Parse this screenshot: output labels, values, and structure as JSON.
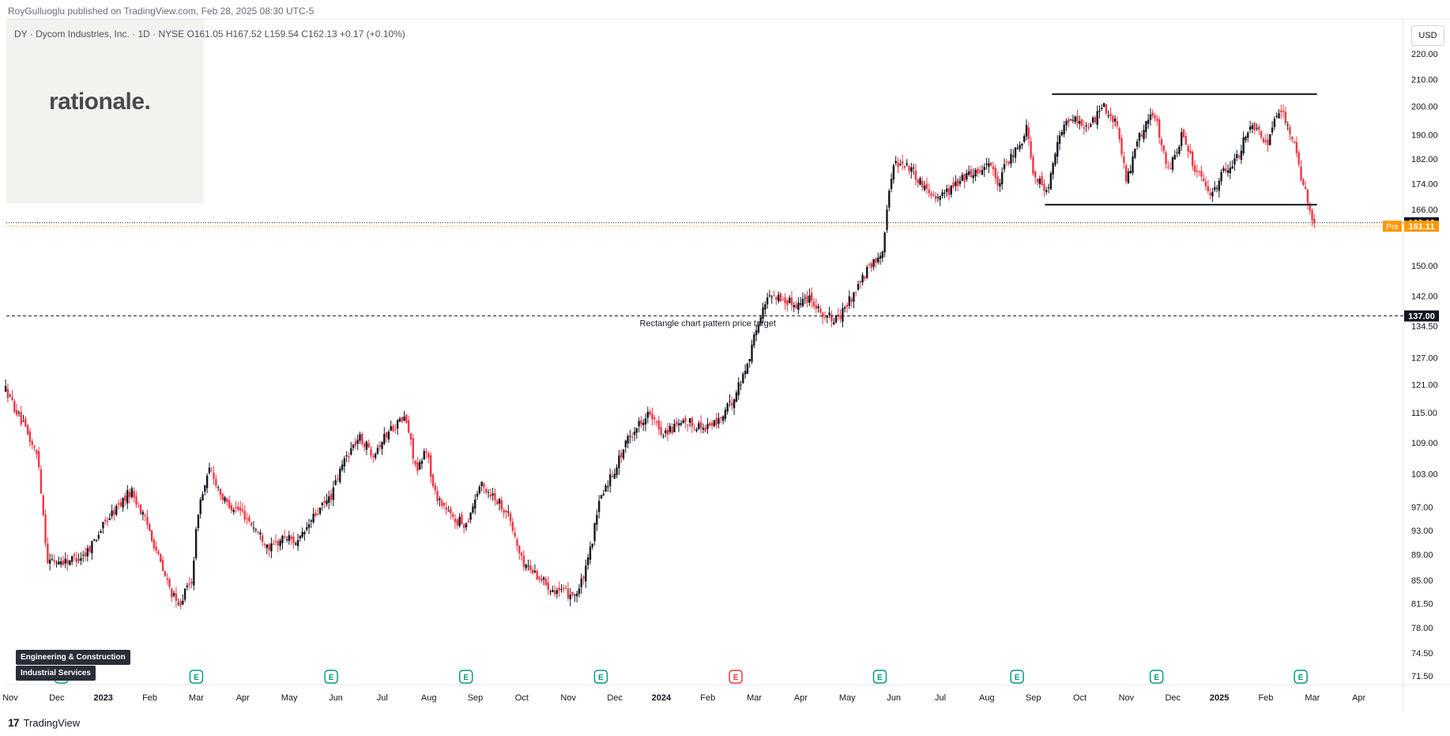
{
  "header": {
    "publisher": "RoyGulluoglu published on TradingView.com, Feb 28, 2025 08:30 UTC-5",
    "symbol_line": "DY · Dycom Industries, Inc. · 1D · NYSE  O161.05  H167.52  L159.54  C162.13  +0.17 (+0.10%)",
    "currency_button": "USD"
  },
  "watermark": {
    "logo_text": "rationale."
  },
  "tags": {
    "sector": "Engineering & Construction",
    "industry": "Industrial Services"
  },
  "footer": {
    "brand": "TradingView",
    "logo_mark": "17"
  },
  "colors": {
    "up": "#131722",
    "down": "#f23645",
    "price_label": "#131722",
    "premarket_label": "#ff9800",
    "earnings_green": "#089981",
    "earnings_red": "#f23645"
  },
  "chart_data": {
    "type": "candlestick",
    "title": "DY · Dycom Industries, Inc. · 1D · NYSE",
    "scale": "log",
    "ylim": [
      70.5,
      222
    ],
    "y_ticks": [
      71.5,
      74.5,
      78.0,
      81.5,
      85.0,
      89.0,
      93.0,
      97.0,
      103.0,
      109.0,
      115.0,
      121.0,
      127.0,
      134.5,
      142.0,
      150.0,
      166.0,
      174.0,
      182.0,
      190.0,
      200.0,
      210.0,
      220.0
    ],
    "y_tick_labels": [
      "71.50",
      "74.50",
      "78.00",
      "81.50",
      "85.00",
      "89.00",
      "93.00",
      "97.00",
      "103.00",
      "109.00",
      "115.00",
      "121.00",
      "127.00",
      "134.50",
      "142.00",
      "150.00",
      "166.00",
      "174.00",
      "182.00",
      "190.00",
      "200.00",
      "210.00",
      "220.00"
    ],
    "x_labels": [
      "Nov",
      "Dec",
      "2023",
      "Feb",
      "Mar",
      "Apr",
      "May",
      "Jun",
      "Jul",
      "Aug",
      "Sep",
      "Oct",
      "Nov",
      "Dec",
      "2024",
      "Feb",
      "Mar",
      "Apr",
      "May",
      "Jun",
      "Jul",
      "Aug",
      "Sep",
      "Oct",
      "Nov",
      "Dec",
      "2025",
      "Feb",
      "Mar",
      "Apr"
    ],
    "x_label_months_from_nov2022": [
      0,
      1,
      2,
      3,
      4,
      5,
      6,
      7,
      8,
      9,
      10,
      11,
      12,
      13,
      14,
      15,
      16,
      17,
      18,
      19,
      20,
      21,
      22,
      23,
      24,
      25,
      26,
      27,
      28,
      29
    ],
    "bold_x_labels": [
      "2023",
      "2024",
      "2025"
    ],
    "price_path": [
      {
        "m": -0.1,
        "p": 120
      },
      {
        "m": 0.3,
        "p": 112
      },
      {
        "m": 0.6,
        "p": 106
      },
      {
        "m": 0.8,
        "p": 88
      },
      {
        "m": 1.2,
        "p": 88
      },
      {
        "m": 1.6,
        "p": 89
      },
      {
        "m": 2.1,
        "p": 95
      },
      {
        "m": 2.6,
        "p": 100
      },
      {
        "m": 3.0,
        "p": 93
      },
      {
        "m": 3.3,
        "p": 86
      },
      {
        "m": 3.6,
        "p": 81
      },
      {
        "m": 3.9,
        "p": 85
      },
      {
        "m": 4.05,
        "p": 97
      },
      {
        "m": 4.3,
        "p": 104
      },
      {
        "m": 4.6,
        "p": 98
      },
      {
        "m": 5.0,
        "p": 96
      },
      {
        "m": 5.3,
        "p": 93
      },
      {
        "m": 5.6,
        "p": 90
      },
      {
        "m": 5.9,
        "p": 92
      },
      {
        "m": 6.2,
        "p": 91
      },
      {
        "m": 6.5,
        "p": 95
      },
      {
        "m": 6.9,
        "p": 99
      },
      {
        "m": 7.2,
        "p": 106
      },
      {
        "m": 7.5,
        "p": 110
      },
      {
        "m": 7.8,
        "p": 107
      },
      {
        "m": 8.2,
        "p": 112
      },
      {
        "m": 8.5,
        "p": 114
      },
      {
        "m": 8.75,
        "p": 103
      },
      {
        "m": 8.95,
        "p": 108
      },
      {
        "m": 9.1,
        "p": 100
      },
      {
        "m": 9.5,
        "p": 95
      },
      {
        "m": 9.8,
        "p": 94
      },
      {
        "m": 10.1,
        "p": 101
      },
      {
        "m": 10.4,
        "p": 99
      },
      {
        "m": 10.7,
        "p": 96
      },
      {
        "m": 11.0,
        "p": 88
      },
      {
        "m": 11.3,
        "p": 86
      },
      {
        "m": 11.6,
        "p": 84
      },
      {
        "m": 11.9,
        "p": 83
      },
      {
        "m": 12.2,
        "p": 83
      },
      {
        "m": 12.4,
        "p": 87
      },
      {
        "m": 12.7,
        "p": 99
      },
      {
        "m": 13.0,
        "p": 104
      },
      {
        "m": 13.3,
        "p": 110
      },
      {
        "m": 13.7,
        "p": 115
      },
      {
        "m": 14.0,
        "p": 111
      },
      {
        "m": 14.3,
        "p": 112
      },
      {
        "m": 14.6,
        "p": 113
      },
      {
        "m": 14.9,
        "p": 112
      },
      {
        "m": 15.2,
        "p": 113
      },
      {
        "m": 15.5,
        "p": 117
      },
      {
        "m": 15.8,
        "p": 124
      },
      {
        "m": 16.1,
        "p": 136
      },
      {
        "m": 16.35,
        "p": 143
      },
      {
        "m": 16.6,
        "p": 141
      },
      {
        "m": 16.9,
        "p": 140
      },
      {
        "m": 17.2,
        "p": 142
      },
      {
        "m": 17.5,
        "p": 137
      },
      {
        "m": 17.8,
        "p": 136
      },
      {
        "m": 18.1,
        "p": 142
      },
      {
        "m": 18.4,
        "p": 148
      },
      {
        "m": 18.75,
        "p": 154
      },
      {
        "m": 18.85,
        "p": 166
      },
      {
        "m": 19.0,
        "p": 181
      },
      {
        "m": 19.3,
        "p": 180
      },
      {
        "m": 19.6,
        "p": 174
      },
      {
        "m": 19.9,
        "p": 170
      },
      {
        "m": 20.2,
        "p": 172
      },
      {
        "m": 20.5,
        "p": 176
      },
      {
        "m": 20.8,
        "p": 178
      },
      {
        "m": 21.1,
        "p": 181
      },
      {
        "m": 21.25,
        "p": 172
      },
      {
        "m": 21.4,
        "p": 180
      },
      {
        "m": 21.7,
        "p": 186
      },
      {
        "m": 21.85,
        "p": 193
      },
      {
        "m": 22.0,
        "p": 178
      },
      {
        "m": 22.3,
        "p": 171
      },
      {
        "m": 22.6,
        "p": 192
      },
      {
        "m": 22.9,
        "p": 196
      },
      {
        "m": 23.2,
        "p": 192
      },
      {
        "m": 23.5,
        "p": 201
      },
      {
        "m": 23.8,
        "p": 193
      },
      {
        "m": 24.0,
        "p": 175
      },
      {
        "m": 24.3,
        "p": 190
      },
      {
        "m": 24.6,
        "p": 198
      },
      {
        "m": 24.9,
        "p": 178
      },
      {
        "m": 25.2,
        "p": 190
      },
      {
        "m": 25.5,
        "p": 178
      },
      {
        "m": 25.8,
        "p": 170
      },
      {
        "m": 26.1,
        "p": 178
      },
      {
        "m": 26.4,
        "p": 183
      },
      {
        "m": 26.7,
        "p": 195
      },
      {
        "m": 27.0,
        "p": 186
      },
      {
        "m": 27.3,
        "p": 200
      },
      {
        "m": 27.6,
        "p": 187
      },
      {
        "m": 27.8,
        "p": 174
      },
      {
        "m": 27.95,
        "p": 166
      },
      {
        "m": 28.05,
        "p": 162.13
      }
    ],
    "annotations": {
      "rectangle_top": {
        "from_month": 22.4,
        "to_month": 28.1,
        "price": 204.5
      },
      "rectangle_bottom": {
        "from_month": 22.25,
        "to_month": 28.1,
        "price": 167.5
      },
      "price_target": {
        "price": 137.0,
        "label": "Rectangle chart pattern price target",
        "label_price": "137.00"
      },
      "last_close": {
        "price": 162.13,
        "label": "162.13"
      },
      "premarket": {
        "price": 161.11,
        "label": "161.11",
        "prefix": "Pre"
      }
    },
    "earnings": [
      {
        "month": 1.1,
        "color": "green"
      },
      {
        "month": 4.0,
        "color": "green"
      },
      {
        "month": 6.9,
        "color": "green"
      },
      {
        "month": 9.8,
        "color": "green"
      },
      {
        "month": 12.7,
        "color": "green"
      },
      {
        "month": 15.6,
        "color": "red"
      },
      {
        "month": 18.7,
        "color": "green"
      },
      {
        "month": 21.65,
        "color": "green"
      },
      {
        "month": 24.65,
        "color": "green"
      },
      {
        "month": 27.75,
        "color": "green"
      }
    ],
    "earnings_label": "E"
  }
}
